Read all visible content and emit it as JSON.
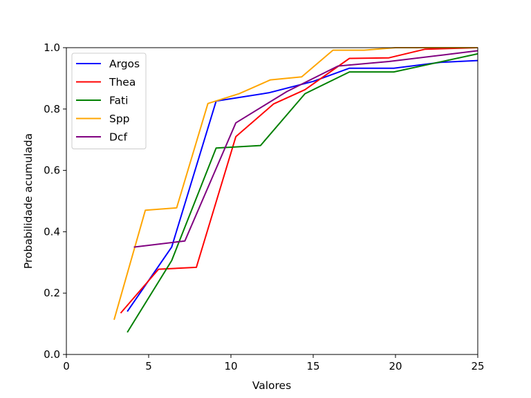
{
  "chart_data": {
    "type": "line",
    "xlabel": "Valores",
    "ylabel": "Probabilidade acumulada",
    "xlim": [
      0,
      25
    ],
    "ylim": [
      0,
      1.0
    ],
    "xticks": [
      0,
      5,
      10,
      15,
      20,
      25
    ],
    "xtick_labels": [
      "0",
      "5",
      "10",
      "15",
      "20",
      "25"
    ],
    "yticks": [
      0.0,
      0.2,
      0.4,
      0.6,
      0.8,
      1.0
    ],
    "ytick_labels": [
      "0.0",
      "0.2",
      "0.4",
      "0.6",
      "0.8",
      "1.0"
    ],
    "grid": false,
    "legend_position": "upper-left",
    "series": [
      {
        "name": "Argos",
        "color": "#0000ff",
        "x": [
          3.7,
          6.4,
          9.1,
          12.3,
          15.0,
          17.2,
          19.9,
          22.7,
          25.0
        ],
        "y": [
          0.14,
          0.35,
          0.826,
          0.853,
          0.89,
          0.933,
          0.933,
          0.952,
          0.958
        ]
      },
      {
        "name": "Thea",
        "color": "#ff0000",
        "x": [
          3.3,
          5.6,
          7.9,
          10.3,
          12.6,
          14.5,
          17.2,
          19.6,
          21.8,
          25.0
        ],
        "y": [
          0.135,
          0.278,
          0.284,
          0.71,
          0.817,
          0.863,
          0.965,
          0.967,
          0.995,
          1.0
        ]
      },
      {
        "name": "Fati",
        "color": "#008000",
        "x": [
          3.7,
          6.4,
          9.1,
          11.8,
          14.5,
          17.2,
          19.9,
          25.0
        ],
        "y": [
          0.072,
          0.306,
          0.673,
          0.681,
          0.85,
          0.921,
          0.921,
          0.98
        ]
      },
      {
        "name": "Spp",
        "color": "#ffa500",
        "x": [
          2.9,
          4.8,
          6.7,
          8.6,
          10.5,
          12.4,
          14.3,
          16.2,
          18.1,
          20.0,
          25.0
        ],
        "y": [
          0.113,
          0.47,
          0.478,
          0.818,
          0.85,
          0.895,
          0.905,
          0.992,
          0.992,
          1.0,
          1.0
        ]
      },
      {
        "name": "Dcf",
        "color": "#800080",
        "x": [
          4.1,
          7.2,
          10.3,
          13.4,
          16.5,
          19.6,
          22.7,
          25.0
        ],
        "y": [
          0.35,
          0.37,
          0.755,
          0.857,
          0.94,
          0.955,
          0.975,
          0.99
        ]
      }
    ]
  }
}
